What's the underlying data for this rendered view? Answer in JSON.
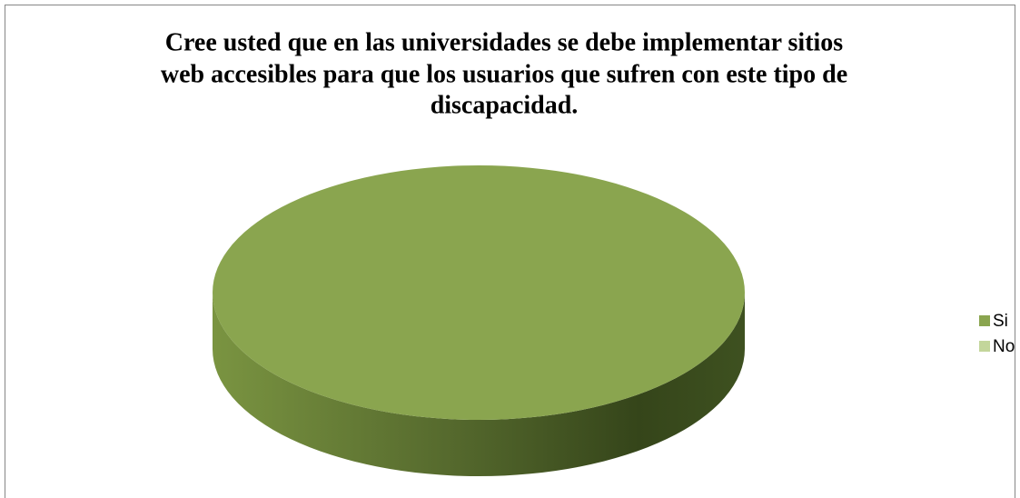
{
  "chart_data": {
    "type": "pie3d",
    "title": [
      "Cree usted que en las universidades se debe implementar sitios",
      "web accesibles para que los usuarios que sufren con este tipo de",
      "discapacidad."
    ],
    "categories": [
      "Si",
      "No"
    ],
    "values": [
      100,
      0
    ],
    "colors": [
      "#8aa54f",
      "#c3d69b"
    ],
    "legend": "right"
  }
}
